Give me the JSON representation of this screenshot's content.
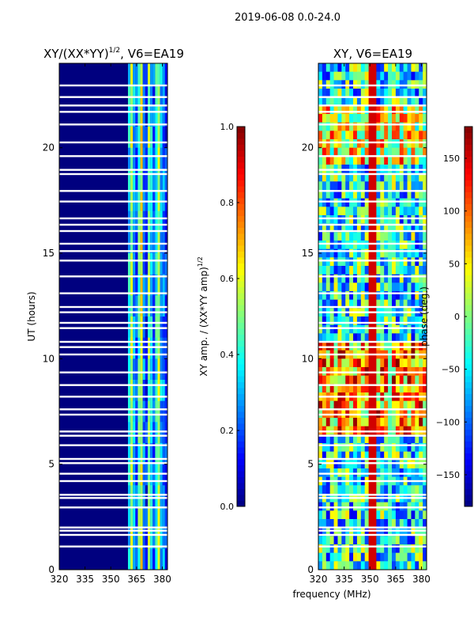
{
  "figure_title": "2019-06-08 0.0-24.0",
  "colors": {
    "panel_background": "#00007f",
    "gap": "#ffffff",
    "axis": "#000000"
  },
  "chart_data": [
    {
      "type": "heatmap",
      "id": "amp",
      "title_main": "XY/(XX*YY)",
      "title_sup": "1/2",
      "title_tail": ", V6=EA19",
      "xlabel": "",
      "ylabel": "UT (hours)",
      "xlim": [
        320,
        383
      ],
      "ylim": [
        0,
        24
      ],
      "xticks": [
        "320",
        "335",
        "350",
        "365",
        "380"
      ],
      "xtick_values": [
        320,
        335,
        350,
        365,
        380
      ],
      "yticks": [
        "0",
        "5",
        "10",
        "15",
        "20"
      ],
      "ytick_values": [
        0,
        5,
        10,
        15,
        20
      ],
      "colorbar": {
        "label_main": "XY amp. / (XX*YY amp)",
        "label_sup": "1/2",
        "min": 0.0,
        "max": 1.0,
        "ticks": [
          "0.0",
          "0.2",
          "0.4",
          "0.6",
          "0.8",
          "1.0"
        ],
        "tick_values": [
          0.0,
          0.2,
          0.4,
          0.6,
          0.8,
          1.0
        ],
        "colormap": "jet"
      },
      "active_band_mhz": [
        360,
        381
      ]
    },
    {
      "type": "heatmap",
      "id": "phase",
      "title_main": "XY, V6=EA19",
      "title_sup": "",
      "title_tail": "",
      "xlabel": "frequency (MHz)",
      "ylabel": "",
      "xlim": [
        320,
        383
      ],
      "ylim": [
        0,
        24
      ],
      "xticks": [
        "320",
        "335",
        "350",
        "365",
        "380"
      ],
      "xtick_values": [
        320,
        335,
        350,
        365,
        380
      ],
      "yticks": [
        "0",
        "5",
        "10",
        "15",
        "20"
      ],
      "ytick_values": [
        0,
        5,
        10,
        15,
        20
      ],
      "colorbar": {
        "label_main": "phase (deg.)",
        "label_sup": "",
        "min": -180,
        "max": 180,
        "ticks": [
          "−150",
          "−100",
          "−50",
          "0",
          "50",
          "100",
          "150"
        ],
        "tick_values": [
          -150,
          -100,
          -50,
          0,
          50,
          100,
          150
        ],
        "colormap": "jet"
      }
    }
  ],
  "gaps_ut_hours": [
    1.1,
    1.65,
    1.85,
    2.0,
    2.95,
    3.4,
    3.55,
    4.2,
    4.55,
    5.05,
    5.25,
    5.9,
    6.35,
    6.55,
    7.35,
    7.6,
    8.2,
    8.75,
    9.35,
    10.2,
    10.55,
    10.8,
    11.45,
    11.7,
    12.2,
    12.45,
    13.1,
    13.9,
    14.65,
    15.1,
    15.45,
    16.05,
    16.35,
    16.65,
    17.45,
    17.95,
    18.75,
    18.95,
    19.6,
    20.25,
    21.1,
    21.7,
    22.0,
    22.4,
    22.95
  ]
}
